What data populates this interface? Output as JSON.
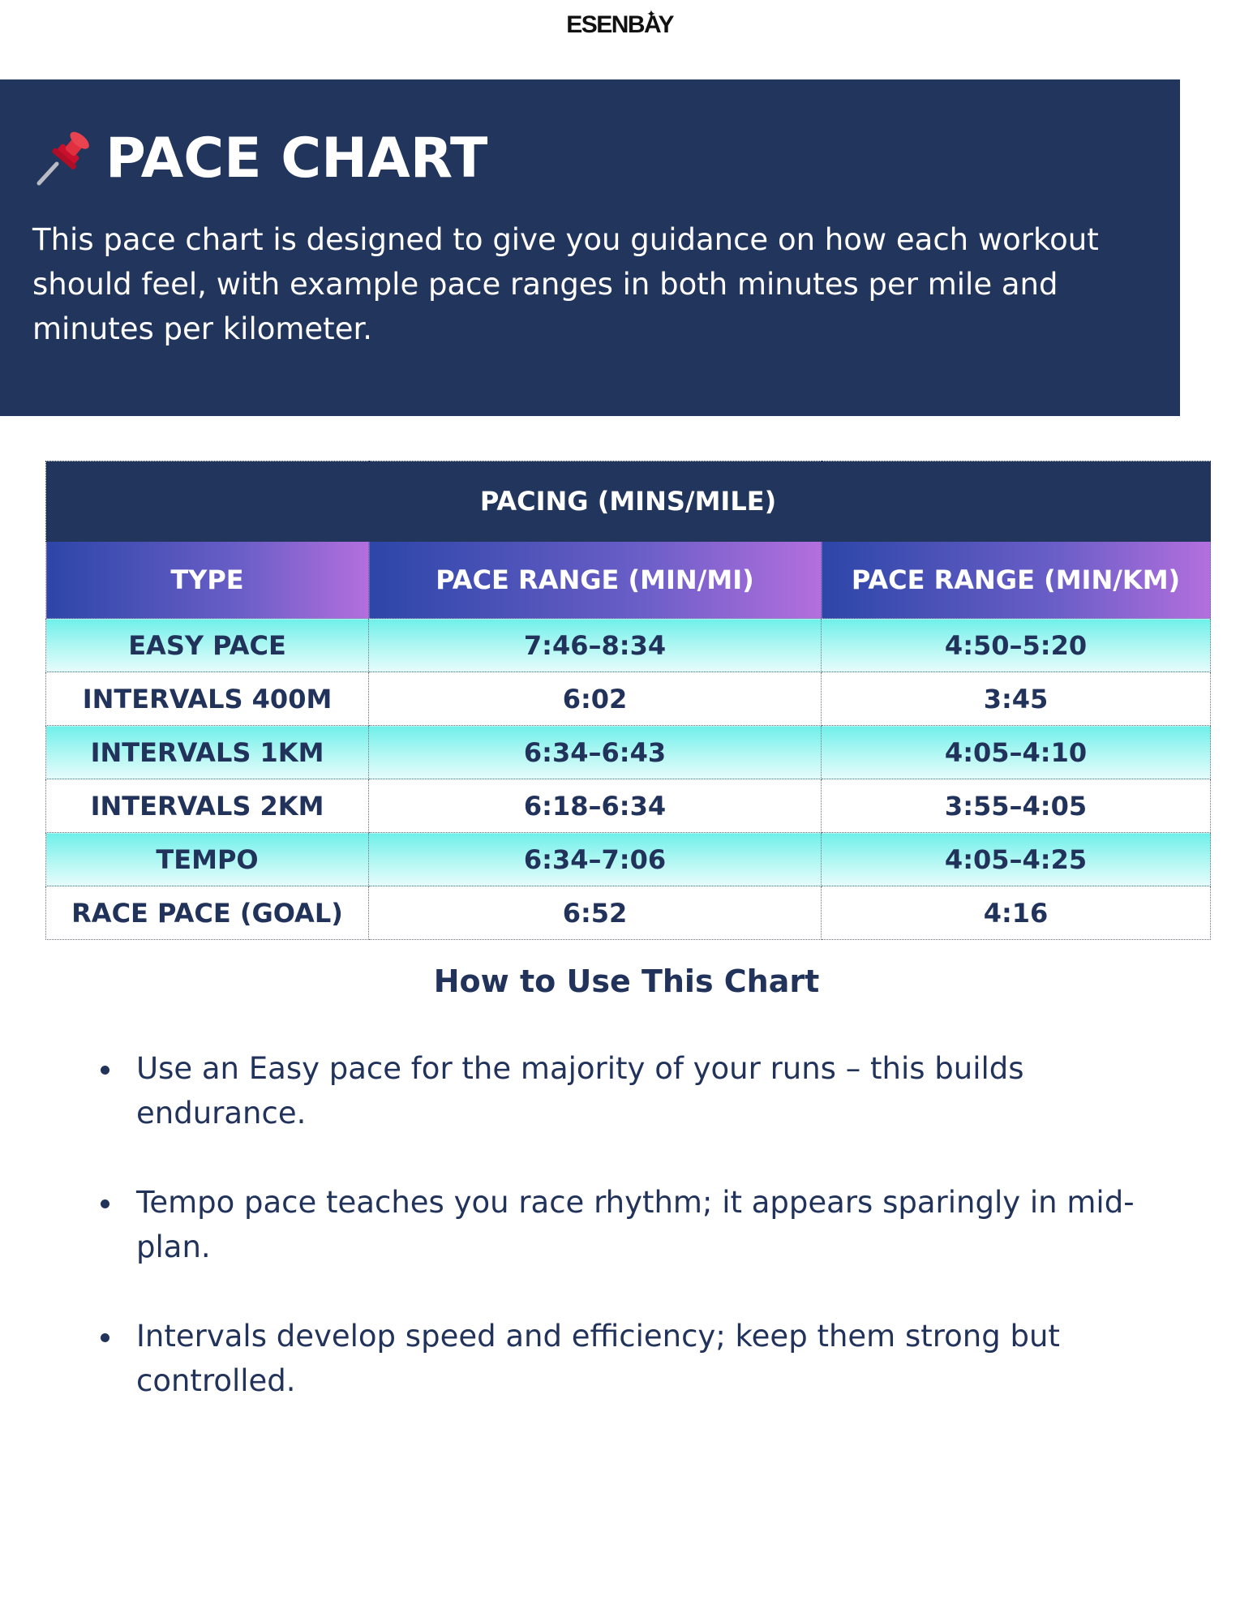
{
  "brand": {
    "logo_text": "ESENBAY",
    "star_icon": "sparkle-icon"
  },
  "hero": {
    "icon": "pushpin-icon",
    "title": "PACE CHART",
    "description": "This pace chart is designed to give you guidance on how each workout should feel, with example pace ranges in both minutes per mile and minutes per kilometer."
  },
  "table": {
    "caption": "PACING (MINS/MILE)",
    "columns": [
      "TYPE",
      "PACE RANGE (MIN/MI)",
      "PACE RANGE (MIN/KM)"
    ],
    "rows": [
      [
        "EASY PACE",
        "7:46–8:34",
        "4:50–5:20"
      ],
      [
        "INTERVALS 400M",
        "6:02",
        "3:45"
      ],
      [
        "INTERVALS 1KM",
        "6:34–6:43",
        "4:05–4:10"
      ],
      [
        "INTERVALS 2KM",
        "6:18–6:34",
        "3:55–4:05"
      ],
      [
        "TEMPO",
        "6:34–7:06",
        "4:05–4:25"
      ],
      [
        "RACE PACE (GOAL)",
        "6:52",
        "4:16"
      ]
    ],
    "colors": {
      "header_bg": "#22355c",
      "gradient_start": "#2d46a8",
      "gradient_end": "#b36fdd",
      "row_shade": "#6ff0ea"
    }
  },
  "howto": {
    "heading": "How to Use This Chart",
    "tips": [
      "Use an Easy pace for the majority of your runs – this builds endurance.",
      "Tempo pace teaches you race rhythm; it appears sparingly in mid-plan.",
      "Intervals develop speed and efficiency; keep them strong but controlled."
    ]
  }
}
